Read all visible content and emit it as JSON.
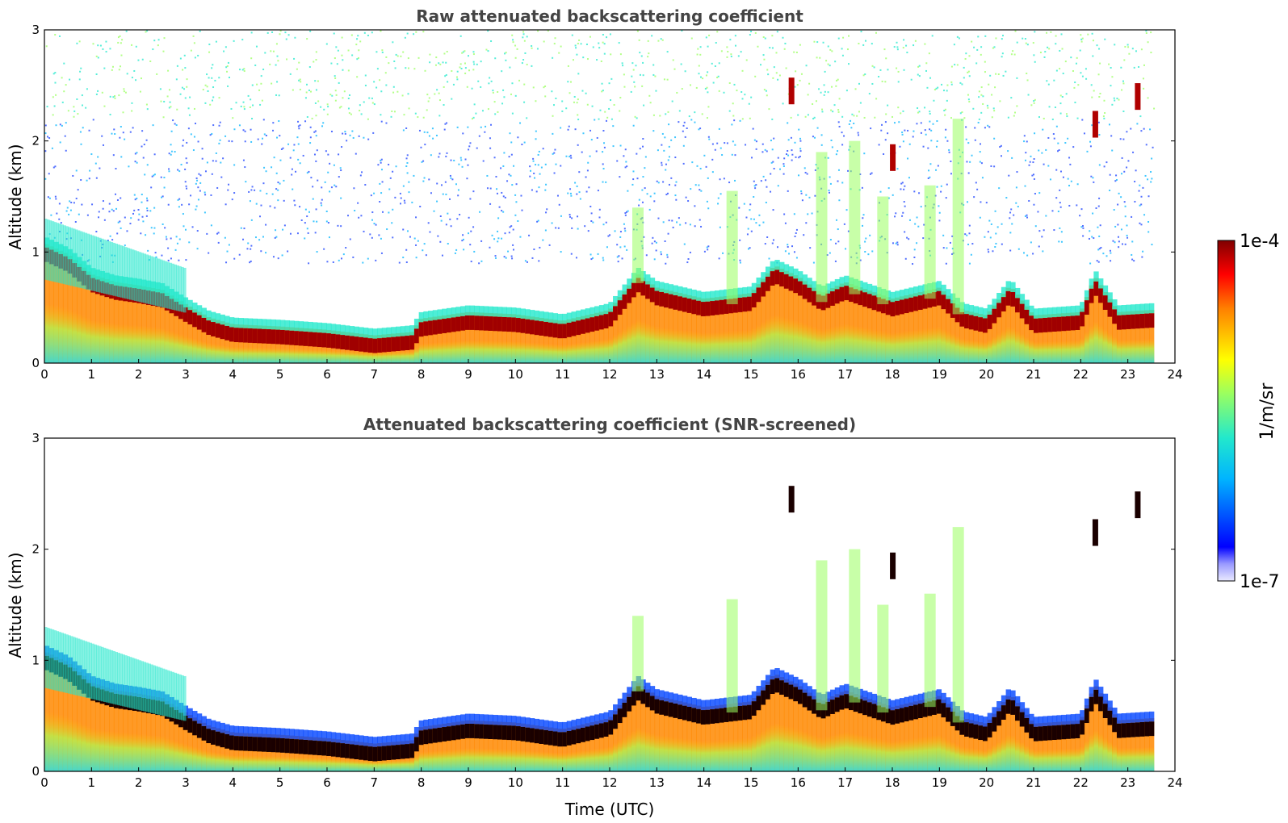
{
  "chart_data": [
    {
      "type": "heatmap",
      "id": "raw",
      "title": "Raw attenuated backscattering coefficient",
      "xlabel": "",
      "ylabel": "Altitude (km)",
      "xlim": [
        0,
        24
      ],
      "ylim": [
        0,
        3
      ],
      "xticks": [
        "0",
        "1",
        "2",
        "3",
        "4",
        "5",
        "6",
        "7",
        "8",
        "9",
        "10",
        "11",
        "12",
        "13",
        "14",
        "15",
        "16",
        "17",
        "18",
        "19",
        "20",
        "21",
        "22",
        "23",
        "24"
      ],
      "yticks": [
        "0",
        "1",
        "2",
        "3"
      ],
      "data_end_hour": 23.55,
      "boundary_layer_top_km": [
        [
          0,
          1.0
        ],
        [
          0.5,
          0.9
        ],
        [
          1,
          0.72
        ],
        [
          1.5,
          0.65
        ],
        [
          2,
          0.62
        ],
        [
          2.5,
          0.58
        ],
        [
          3,
          0.45
        ],
        [
          3.5,
          0.33
        ],
        [
          4,
          0.27
        ],
        [
          5,
          0.25
        ],
        [
          6,
          0.22
        ],
        [
          7,
          0.17
        ],
        [
          7.8,
          0.2
        ],
        [
          8,
          0.32
        ],
        [
          9,
          0.38
        ],
        [
          10,
          0.36
        ],
        [
          11,
          0.3
        ],
        [
          12,
          0.4
        ],
        [
          12.6,
          0.72
        ],
        [
          13,
          0.6
        ],
        [
          14,
          0.5
        ],
        [
          15,
          0.55
        ],
        [
          15.5,
          0.8
        ],
        [
          16,
          0.7
        ],
        [
          16.5,
          0.55
        ],
        [
          17,
          0.65
        ],
        [
          18,
          0.5
        ],
        [
          19,
          0.6
        ],
        [
          19.5,
          0.4
        ],
        [
          20,
          0.35
        ],
        [
          20.5,
          0.62
        ],
        [
          21,
          0.35
        ],
        [
          22,
          0.38
        ],
        [
          22.3,
          0.7
        ],
        [
          22.8,
          0.38
        ],
        [
          23.55,
          0.4
        ]
      ]
    },
    {
      "type": "heatmap",
      "id": "screened",
      "title": "Attenuated backscattering coefficient (SNR-screened)",
      "xlabel": "Time (UTC)",
      "ylabel": "Altitude (km)",
      "xlim": [
        0,
        24
      ],
      "ylim": [
        0,
        3
      ],
      "xticks": [
        "0",
        "1",
        "2",
        "3",
        "4",
        "5",
        "6",
        "7",
        "8",
        "9",
        "10",
        "11",
        "12",
        "13",
        "14",
        "15",
        "16",
        "17",
        "18",
        "19",
        "20",
        "21",
        "22",
        "23",
        "24"
      ],
      "yticks": [
        "0",
        "1",
        "2",
        "3"
      ],
      "data_end_hour": 23.55
    }
  ],
  "colorbar": {
    "max_label": "1e-4",
    "min_label": "1e-7",
    "unit": "1/m/sr",
    "colormap": "jet",
    "scale": "log"
  }
}
